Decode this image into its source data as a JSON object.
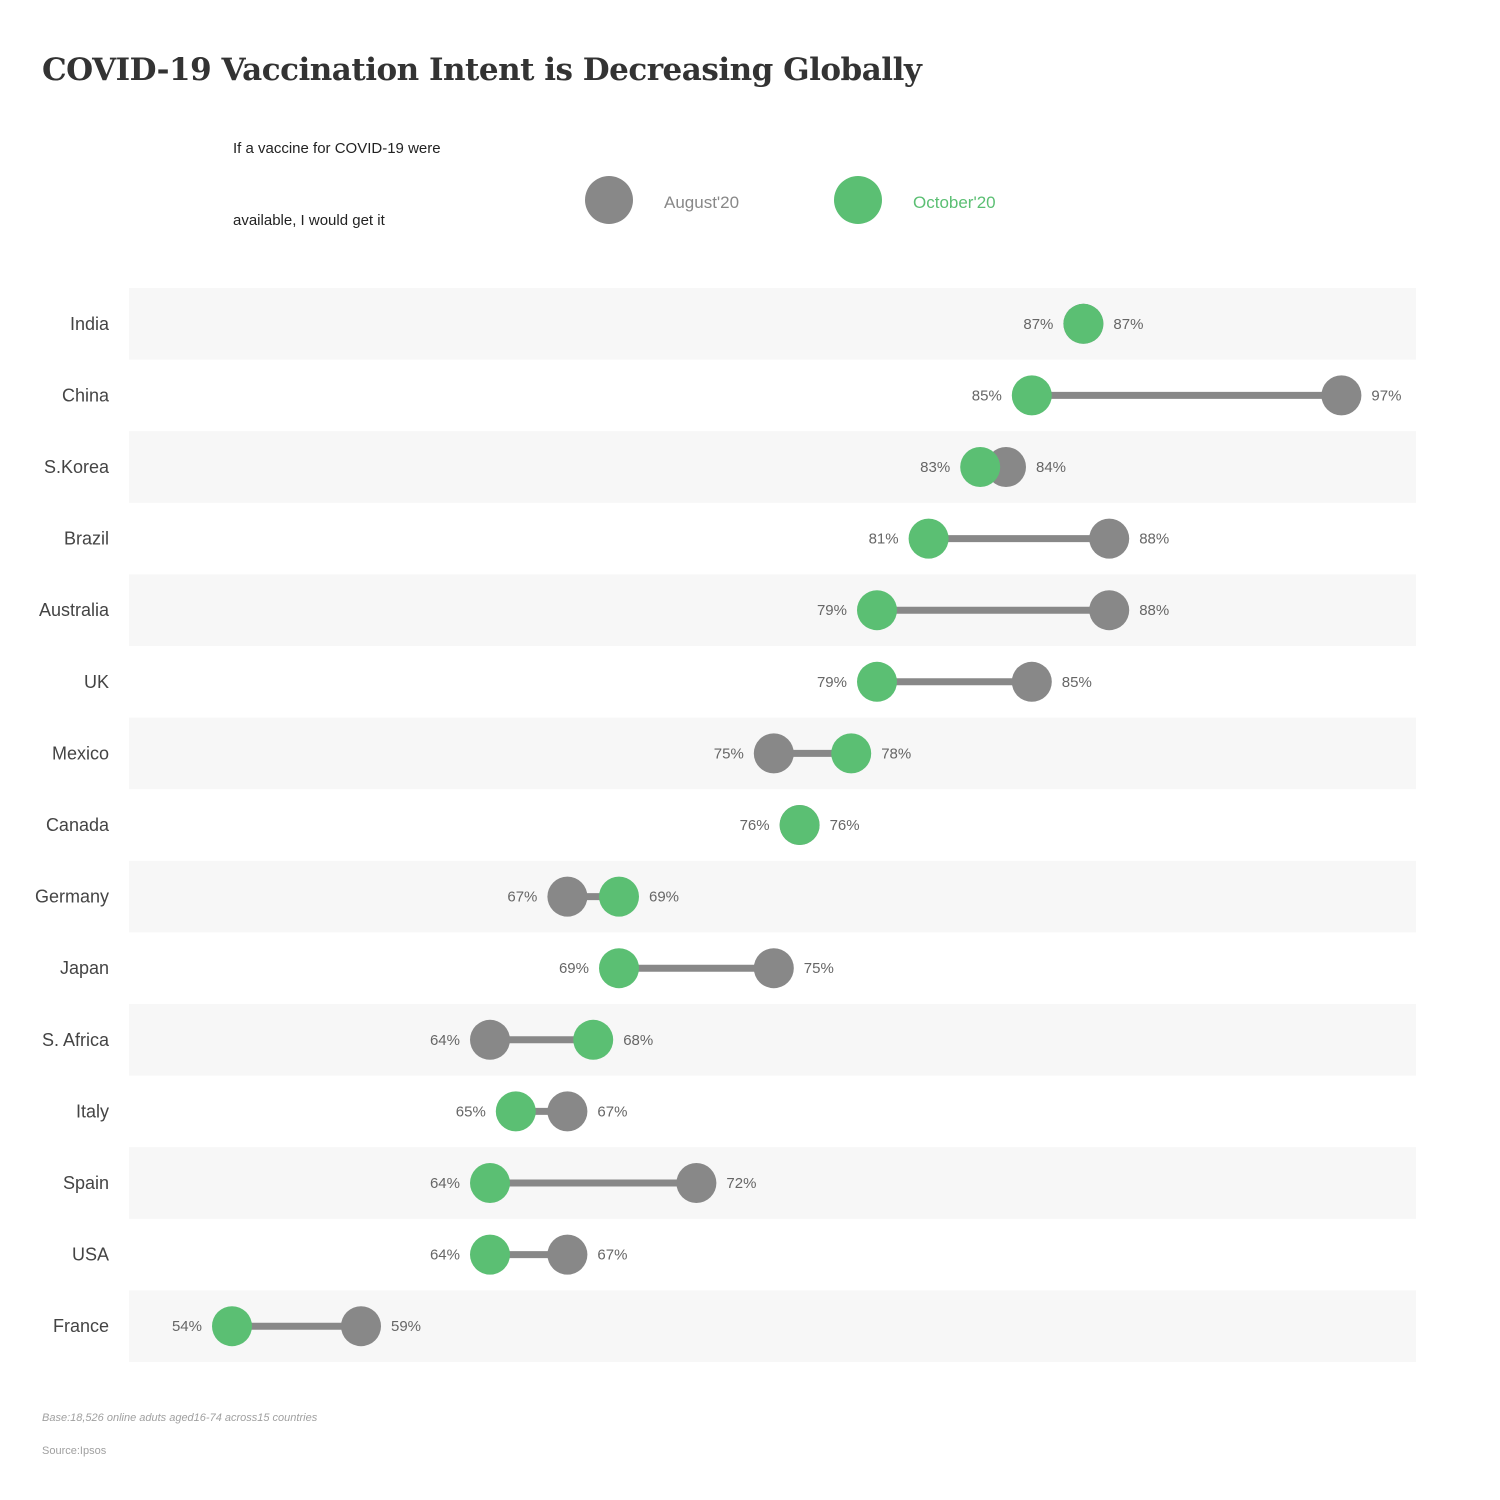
{
  "header": {
    "title": "COVID-19 Vaccination Intent is Decreasing Globally",
    "subtitle_line1": "If a vaccine for COVID-19 were",
    "subtitle_line2": "available, I would get it"
  },
  "legend": {
    "august": {
      "label": "August'20",
      "color": "#888888"
    },
    "october": {
      "label": "October'20",
      "color": "#5bbf73"
    }
  },
  "colors": {
    "band": "#f7f7f7",
    "line": "#888888",
    "value_text": "#666666",
    "country_text": "#444444"
  },
  "chart_data": {
    "type": "dumbbell",
    "value_unit": "%",
    "series": [
      {
        "name": "August'20",
        "color": "#888888"
      },
      {
        "name": "October'20",
        "color": "#5bbf73"
      }
    ],
    "rows": [
      {
        "country": "India",
        "august": 87,
        "october": 87
      },
      {
        "country": "China",
        "august": 97,
        "october": 85
      },
      {
        "country": "S.Korea",
        "august": 84,
        "october": 83
      },
      {
        "country": "Brazil",
        "august": 88,
        "october": 81
      },
      {
        "country": "Australia",
        "august": 88,
        "october": 79
      },
      {
        "country": "UK",
        "august": 85,
        "october": 79
      },
      {
        "country": "Mexico",
        "august": 75,
        "october": 78
      },
      {
        "country": "Canada",
        "august": 76,
        "october": 76
      },
      {
        "country": "Germany",
        "august": 67,
        "october": 69
      },
      {
        "country": "Japan",
        "august": 75,
        "october": 69
      },
      {
        "country": "S. Africa",
        "august": 64,
        "october": 68
      },
      {
        "country": "Italy",
        "august": 67,
        "october": 65
      },
      {
        "country": "Spain",
        "august": 72,
        "october": 64
      },
      {
        "country": "USA",
        "august": 67,
        "october": 64
      },
      {
        "country": "France",
        "august": 59,
        "october": 54
      }
    ]
  },
  "footer": {
    "base": "Base:18,526 online aduts aged16-74 across15 countries",
    "source": "Source:Ipsos"
  }
}
